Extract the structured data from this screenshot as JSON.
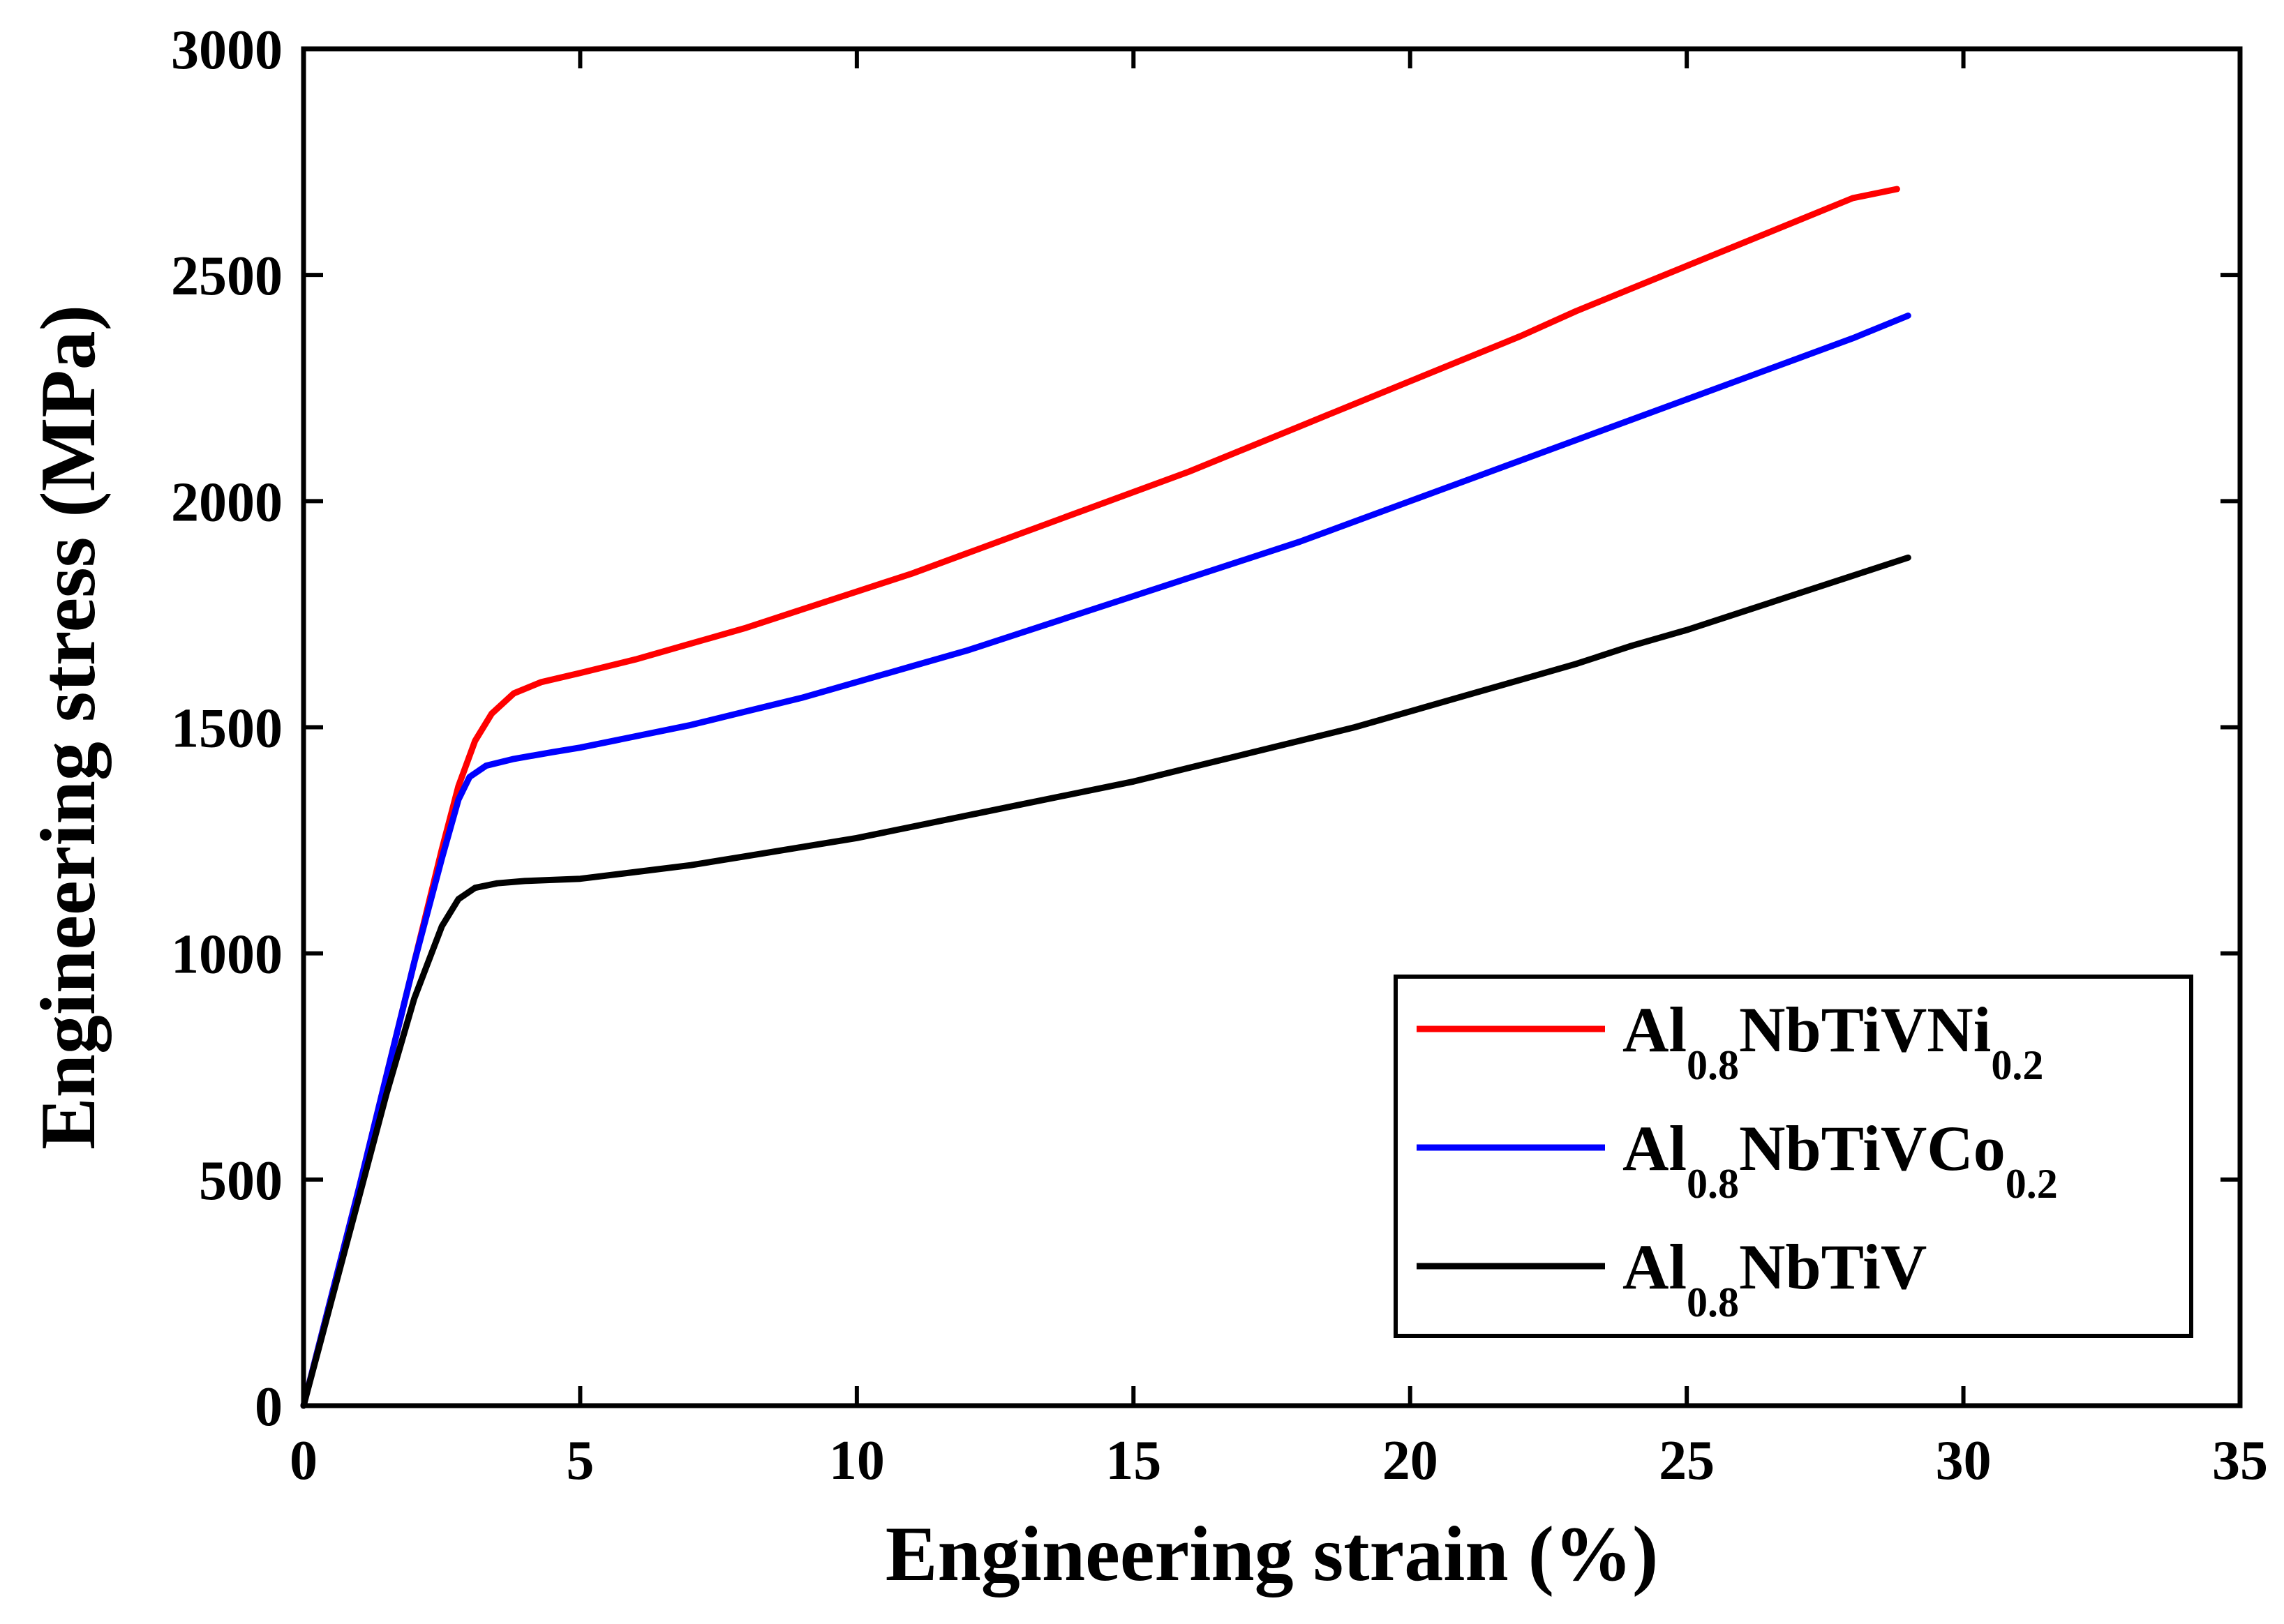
{
  "chart_data": {
    "type": "line",
    "title": "",
    "xlabel": "Engineering strain (%)",
    "ylabel": "Engineering stress (MPa)",
    "xlim": [
      0,
      35
    ],
    "ylim": [
      0,
      3000
    ],
    "x_ticks": [
      "0",
      "5",
      "10",
      "15",
      "20",
      "25",
      "30",
      "35"
    ],
    "y_ticks": [
      "0",
      "500",
      "1000",
      "1500",
      "2000",
      "2500",
      "3000"
    ],
    "grid": false,
    "legend_position": "bottom-right",
    "series": [
      {
        "name": "Al0.8NbTiVNi0.2",
        "label_parts": [
          {
            "t": "Al",
            "sub": false
          },
          {
            "t": "0.8",
            "sub": true
          },
          {
            "t": "NbTiVNi",
            "sub": false
          },
          {
            "t": "0.2",
            "sub": true
          }
        ],
        "color": "#ff0000",
        "points": [
          [
            0,
            0
          ],
          [
            0.5,
            240
          ],
          [
            1,
            480
          ],
          [
            1.5,
            730
          ],
          [
            2,
            980
          ],
          [
            2.5,
            1230
          ],
          [
            2.8,
            1370
          ],
          [
            3.1,
            1470
          ],
          [
            3.4,
            1530
          ],
          [
            3.8,
            1575
          ],
          [
            4.3,
            1600
          ],
          [
            5,
            1620
          ],
          [
            6,
            1650
          ],
          [
            7,
            1685
          ],
          [
            8,
            1720
          ],
          [
            9,
            1760
          ],
          [
            10,
            1800
          ],
          [
            11,
            1840
          ],
          [
            12,
            1885
          ],
          [
            13,
            1930
          ],
          [
            14,
            1975
          ],
          [
            15,
            2020
          ],
          [
            16,
            2065
          ],
          [
            17,
            2115
          ],
          [
            18,
            2165
          ],
          [
            19,
            2215
          ],
          [
            20,
            2265
          ],
          [
            21,
            2315
          ],
          [
            22,
            2365
          ],
          [
            23,
            2420
          ],
          [
            24,
            2470
          ],
          [
            25,
            2520
          ],
          [
            26,
            2570
          ],
          [
            27,
            2620
          ],
          [
            28,
            2670
          ],
          [
            28.8,
            2690
          ]
        ]
      },
      {
        "name": "Al0.8NbTiVCo0.2",
        "label_parts": [
          {
            "t": "Al",
            "sub": false
          },
          {
            "t": "0.8",
            "sub": true
          },
          {
            "t": "NbTiVCo",
            "sub": false
          },
          {
            "t": "0.2",
            "sub": true
          }
        ],
        "color": "#0000ff",
        "points": [
          [
            0,
            0
          ],
          [
            0.5,
            240
          ],
          [
            1,
            480
          ],
          [
            1.5,
            730
          ],
          [
            2,
            980
          ],
          [
            2.5,
            1210
          ],
          [
            2.8,
            1340
          ],
          [
            3.0,
            1390
          ],
          [
            3.3,
            1415
          ],
          [
            3.8,
            1430
          ],
          [
            4.5,
            1445
          ],
          [
            5,
            1455
          ],
          [
            6,
            1480
          ],
          [
            7,
            1505
          ],
          [
            8,
            1535
          ],
          [
            9,
            1565
          ],
          [
            10,
            1600
          ],
          [
            11,
            1635
          ],
          [
            12,
            1670
          ],
          [
            13,
            1710
          ],
          [
            14,
            1750
          ],
          [
            15,
            1790
          ],
          [
            16,
            1830
          ],
          [
            17,
            1870
          ],
          [
            18,
            1910
          ],
          [
            19,
            1955
          ],
          [
            20,
            2000
          ],
          [
            21,
            2045
          ],
          [
            22,
            2090
          ],
          [
            23,
            2135
          ],
          [
            24,
            2180
          ],
          [
            25,
            2225
          ],
          [
            26,
            2270
          ],
          [
            27,
            2315
          ],
          [
            28,
            2360
          ],
          [
            29,
            2410
          ]
        ]
      },
      {
        "name": "Al0.8NbTiV",
        "label_parts": [
          {
            "t": "Al",
            "sub": false
          },
          {
            "t": "0.8",
            "sub": true
          },
          {
            "t": "NbTiV",
            "sub": false
          }
        ],
        "color": "#000000",
        "points": [
          [
            0,
            0
          ],
          [
            0.5,
            230
          ],
          [
            1,
            460
          ],
          [
            1.5,
            690
          ],
          [
            2,
            900
          ],
          [
            2.5,
            1060
          ],
          [
            2.8,
            1120
          ],
          [
            3.1,
            1145
          ],
          [
            3.5,
            1155
          ],
          [
            4,
            1160
          ],
          [
            5,
            1165
          ],
          [
            6,
            1180
          ],
          [
            7,
            1195
          ],
          [
            8,
            1215
          ],
          [
            9,
            1235
          ],
          [
            10,
            1255
          ],
          [
            11,
            1280
          ],
          [
            12,
            1305
          ],
          [
            13,
            1330
          ],
          [
            14,
            1355
          ],
          [
            15,
            1380
          ],
          [
            16,
            1410
          ],
          [
            17,
            1440
          ],
          [
            18,
            1470
          ],
          [
            19,
            1500
          ],
          [
            20,
            1535
          ],
          [
            21,
            1570
          ],
          [
            22,
            1605
          ],
          [
            23,
            1640
          ],
          [
            24,
            1680
          ],
          [
            25,
            1715
          ],
          [
            26,
            1755
          ],
          [
            27,
            1795
          ],
          [
            28,
            1835
          ],
          [
            29,
            1875
          ]
        ]
      }
    ]
  }
}
